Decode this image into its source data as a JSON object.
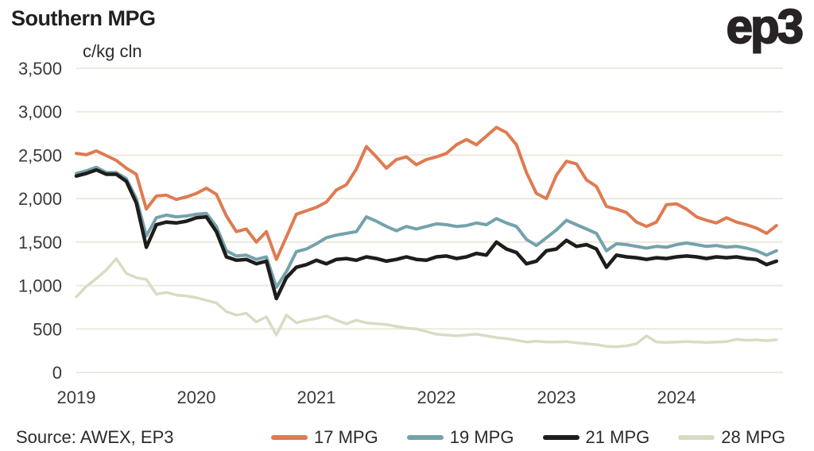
{
  "header": {
    "title": "Southern MPG",
    "logo": "ep3",
    "unit_label": "c/kg cln"
  },
  "footer": {
    "source": "Source: AWEX, EP3"
  },
  "colors": {
    "grid": "#ECEADD",
    "axis_text": "#3a3a3a",
    "title_text": "#231f20"
  },
  "chart_data": {
    "type": "line",
    "title": "Southern MPG",
    "ylabel": "c/kg cln",
    "xlabel": "",
    "ylim": [
      0,
      3500
    ],
    "y_ticks": [
      0,
      500,
      1000,
      1500,
      2000,
      2500,
      3000,
      3500
    ],
    "x_ticks": [
      "2019",
      "2020",
      "2021",
      "2022",
      "2023",
      "2024"
    ],
    "x_start": "2019-01",
    "x_interval": "monthly",
    "grid": "horizontal",
    "legend_position": "bottom",
    "series": [
      {
        "name": "17 MPG",
        "color": "#DE7B51",
        "values": [
          2520,
          2505,
          2550,
          2495,
          2440,
          2350,
          2280,
          1880,
          2030,
          2040,
          1990,
          2020,
          2060,
          2120,
          2050,
          1800,
          1620,
          1650,
          1500,
          1620,
          1300,
          1560,
          1820,
          1860,
          1900,
          1960,
          2100,
          2160,
          2340,
          2600,
          2480,
          2350,
          2450,
          2480,
          2390,
          2450,
          2480,
          2520,
          2620,
          2680,
          2620,
          2720,
          2820,
          2760,
          2620,
          2300,
          2060,
          2000,
          2270,
          2430,
          2400,
          2215,
          2140,
          1910,
          1880,
          1840,
          1730,
          1680,
          1730,
          1930,
          1940,
          1880,
          1790,
          1750,
          1720,
          1780,
          1730,
          1700,
          1660,
          1600,
          1690
        ]
      },
      {
        "name": "19 MPG",
        "color": "#74A2AB",
        "values": [
          2290,
          2320,
          2360,
          2300,
          2300,
          2230,
          2000,
          1570,
          1780,
          1810,
          1790,
          1800,
          1820,
          1830,
          1680,
          1400,
          1340,
          1350,
          1300,
          1330,
          980,
          1160,
          1390,
          1420,
          1480,
          1550,
          1580,
          1600,
          1620,
          1790,
          1740,
          1680,
          1630,
          1680,
          1650,
          1680,
          1710,
          1700,
          1680,
          1690,
          1720,
          1700,
          1770,
          1720,
          1680,
          1530,
          1460,
          1550,
          1640,
          1750,
          1700,
          1650,
          1600,
          1400,
          1480,
          1470,
          1450,
          1430,
          1450,
          1440,
          1470,
          1490,
          1470,
          1450,
          1460,
          1440,
          1450,
          1430,
          1400,
          1350,
          1400
        ]
      },
      {
        "name": "21 MPG",
        "color": "#1E1D1B",
        "values": [
          2260,
          2290,
          2330,
          2280,
          2280,
          2200,
          1950,
          1440,
          1700,
          1730,
          1720,
          1740,
          1780,
          1790,
          1620,
          1330,
          1290,
          1300,
          1250,
          1280,
          850,
          1090,
          1210,
          1240,
          1290,
          1250,
          1300,
          1310,
          1290,
          1330,
          1310,
          1280,
          1300,
          1330,
          1300,
          1290,
          1330,
          1340,
          1310,
          1330,
          1370,
          1350,
          1500,
          1420,
          1380,
          1250,
          1280,
          1400,
          1420,
          1520,
          1450,
          1470,
          1420,
          1210,
          1350,
          1330,
          1320,
          1300,
          1320,
          1310,
          1330,
          1340,
          1330,
          1310,
          1330,
          1320,
          1330,
          1310,
          1300,
          1240,
          1280
        ]
      },
      {
        "name": "28 MPG",
        "color": "#DADBC3",
        "values": [
          870,
          990,
          1080,
          1180,
          1310,
          1140,
          1090,
          1070,
          900,
          920,
          890,
          880,
          860,
          830,
          800,
          700,
          660,
          680,
          580,
          640,
          430,
          660,
          570,
          600,
          620,
          650,
          600,
          560,
          600,
          570,
          560,
          550,
          530,
          510,
          500,
          470,
          440,
          430,
          420,
          430,
          440,
          420,
          400,
          390,
          370,
          350,
          360,
          350,
          350,
          355,
          340,
          330,
          320,
          300,
          295,
          305,
          330,
          420,
          350,
          345,
          350,
          355,
          350,
          345,
          350,
          355,
          380,
          370,
          375,
          365,
          375
        ]
      }
    ]
  }
}
